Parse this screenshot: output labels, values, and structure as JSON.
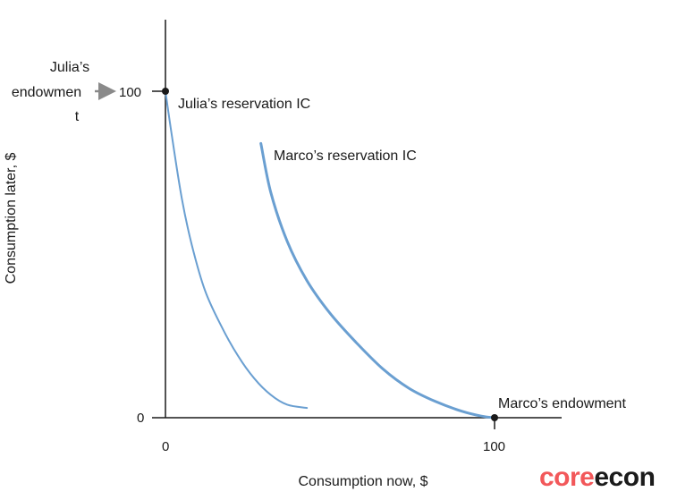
{
  "chart_data": {
    "type": "line",
    "xlabel": "Consumption now, $",
    "ylabel": "Consumption later, $",
    "xlim": [
      0,
      120
    ],
    "ylim": [
      0,
      120
    ],
    "x_ticks": [
      "0",
      "100"
    ],
    "y_ticks": [
      "0",
      "100"
    ],
    "grid": false,
    "series": [
      {
        "name": "Julia’s reservation IC",
        "color": "#6a9fd1",
        "x": [
          0,
          2,
          5,
          8,
          12,
          17,
          22,
          27,
          32,
          37,
          43
        ],
        "y": [
          100,
          86,
          67,
          53,
          39,
          28,
          19,
          12,
          7,
          4,
          3
        ]
      },
      {
        "name": "Marco’s reservation IC",
        "color": "#6a9fd1",
        "x": [
          29,
          32,
          37,
          43,
          50,
          58,
          66,
          74,
          82,
          90,
          96,
          100
        ],
        "y": [
          84,
          69,
          54,
          42,
          32,
          23,
          15,
          9,
          5,
          2,
          0.5,
          0
        ]
      }
    ],
    "points": [
      {
        "name": "Julia’s endowment",
        "x": 0,
        "y": 100
      },
      {
        "name": "Marco’s endowment",
        "x": 100,
        "y": 0
      }
    ]
  },
  "labels": {
    "julia_endowment_lines": [
      "Julia’s",
      "endowmen",
      "t"
    ],
    "marco_endowment": "Marco’s endowment",
    "julia_ic": "Julia’s reservation IC",
    "marco_ic": "Marco’s reservation IC"
  },
  "logo": {
    "part1": "core",
    "part2": "econ"
  }
}
